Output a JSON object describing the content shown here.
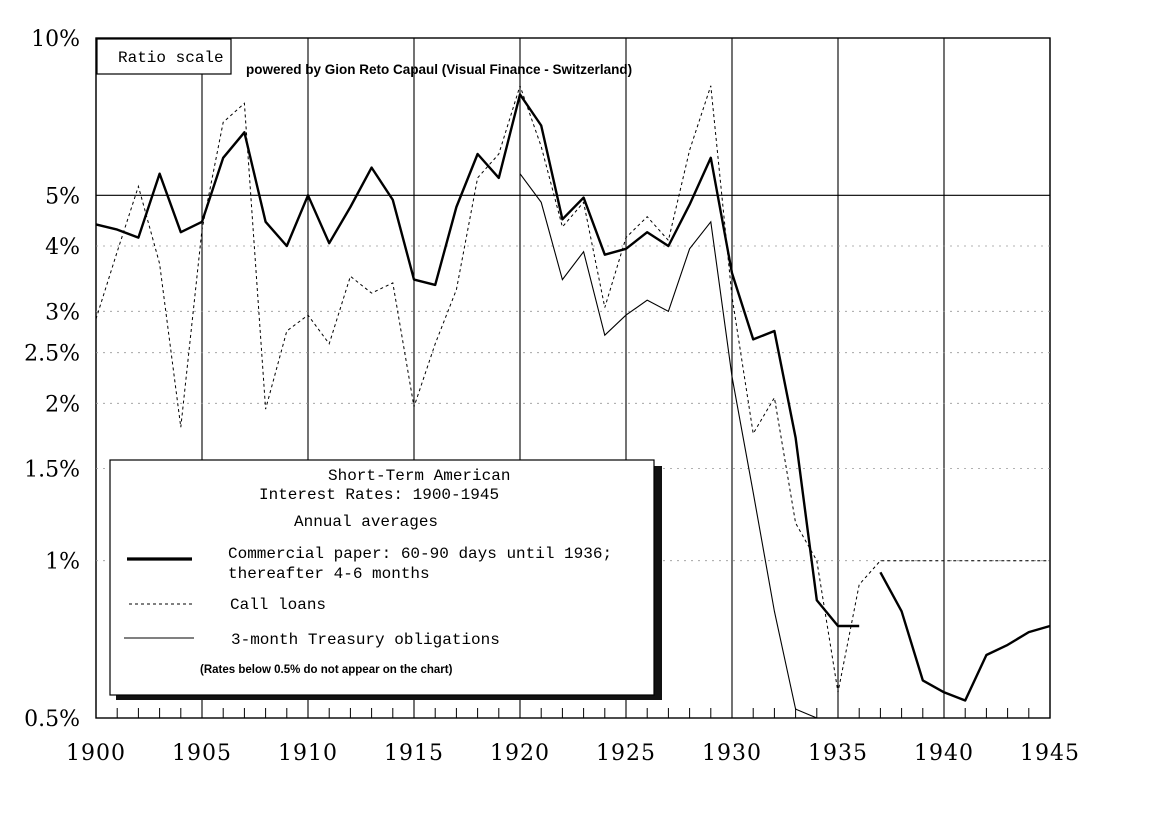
{
  "chart_data": {
    "type": "line",
    "scale": "log",
    "ratio_label": "Ratio scale",
    "credit": "powered by Gion Reto Capaul (Visual Finance - Switzerland)",
    "title_line1": "Short-Term American",
    "title_line2": "Interest Rates: 1900-1945",
    "subtitle": "Annual averages",
    "note": "(Rates below 0.5% do not appear on the chart)",
    "xlim": [
      1900,
      1945
    ],
    "ylim": [
      0.5,
      10
    ],
    "x_ticks": [
      {
        "value": 1900,
        "label": "1900"
      },
      {
        "value": 1905,
        "label": "1905"
      },
      {
        "value": 1910,
        "label": "1910"
      },
      {
        "value": 1915,
        "label": "1915"
      },
      {
        "value": 1920,
        "label": "1920"
      },
      {
        "value": 1925,
        "label": "1925"
      },
      {
        "value": 1930,
        "label": "1930"
      },
      {
        "value": 1935,
        "label": "1935"
      },
      {
        "value": 1940,
        "label": "1940"
      },
      {
        "value": 1945,
        "label": "1945"
      }
    ],
    "y_ticks": [
      {
        "value": 10,
        "label": "10%"
      },
      {
        "value": 5,
        "label": "5%"
      },
      {
        "value": 4,
        "label": "4%"
      },
      {
        "value": 3,
        "label": "3%"
      },
      {
        "value": 2.5,
        "label": "2.5%"
      },
      {
        "value": 2,
        "label": "2%"
      },
      {
        "value": 1.5,
        "label": "1.5%"
      },
      {
        "value": 1,
        "label": "1%"
      },
      {
        "value": 0.5,
        "label": "0.5%"
      }
    ],
    "series": [
      {
        "name": "commercial-paper",
        "label_line1": "Commercial paper: 60-90 days until 1936;",
        "label_line2": "thereafter 4-6 months",
        "style": "bold",
        "segments": [
          [
            [
              1900,
              4.4
            ],
            [
              1901,
              4.3
            ],
            [
              1902,
              4.15
            ],
            [
              1903,
              5.5
            ],
            [
              1904,
              4.25
            ],
            [
              1905,
              4.45
            ],
            [
              1906,
              5.9
            ],
            [
              1907,
              6.6
            ],
            [
              1908,
              4.45
            ],
            [
              1909,
              4.0
            ],
            [
              1910,
              5.0
            ],
            [
              1911,
              4.05
            ],
            [
              1912,
              4.75
            ],
            [
              1913,
              5.65
            ],
            [
              1914,
              4.9
            ],
            [
              1915,
              3.45
            ],
            [
              1916,
              3.37
            ],
            [
              1917,
              4.75
            ],
            [
              1918,
              6.0
            ],
            [
              1919,
              5.4
            ],
            [
              1920,
              7.8
            ],
            [
              1921,
              6.8
            ],
            [
              1922,
              4.5
            ],
            [
              1923,
              4.95
            ],
            [
              1924,
              3.85
            ],
            [
              1925,
              3.95
            ],
            [
              1926,
              4.25
            ],
            [
              1927,
              4.0
            ],
            [
              1928,
              4.8
            ],
            [
              1929,
              5.9
            ],
            [
              1930,
              3.55
            ],
            [
              1931,
              2.65
            ],
            [
              1932,
              2.75
            ],
            [
              1933,
              1.72
            ],
            [
              1934,
              0.84
            ],
            [
              1935,
              0.75
            ],
            [
              1936,
              0.75
            ]
          ],
          [
            [
              1937,
              0.95
            ],
            [
              1938,
              0.8
            ],
            [
              1939,
              0.59
            ],
            [
              1940,
              0.56
            ],
            [
              1941,
              0.54
            ],
            [
              1942,
              0.66
            ],
            [
              1943,
              0.69
            ],
            [
              1944,
              0.73
            ],
            [
              1945,
              0.75
            ]
          ]
        ]
      },
      {
        "name": "call-loans",
        "label_line1": "Call loans",
        "style": "dotted",
        "segments": [
          [
            [
              1900,
              2.9
            ],
            [
              1901,
              3.9
            ],
            [
              1902,
              5.2
            ],
            [
              1903,
              3.7
            ],
            [
              1904,
              1.8
            ],
            [
              1905,
              4.3
            ],
            [
              1906,
              6.9
            ],
            [
              1907,
              7.5
            ],
            [
              1908,
              1.95
            ],
            [
              1909,
              2.75
            ],
            [
              1910,
              2.95
            ],
            [
              1911,
              2.6
            ],
            [
              1912,
              3.5
            ],
            [
              1913,
              3.25
            ],
            [
              1914,
              3.4
            ],
            [
              1915,
              1.97
            ],
            [
              1916,
              2.6
            ],
            [
              1917,
              3.3
            ],
            [
              1918,
              5.4
            ],
            [
              1919,
              6.0
            ],
            [
              1920,
              8.1
            ],
            [
              1921,
              6.2
            ],
            [
              1922,
              4.35
            ],
            [
              1923,
              4.85
            ],
            [
              1924,
              3.05
            ],
            [
              1925,
              4.15
            ],
            [
              1926,
              4.55
            ],
            [
              1927,
              4.1
            ],
            [
              1928,
              6.1
            ],
            [
              1929,
              8.1
            ],
            [
              1930,
              3.2
            ],
            [
              1931,
              1.75
            ],
            [
              1932,
              2.05
            ],
            [
              1933,
              1.18
            ],
            [
              1934,
              1.0
            ],
            [
              1935,
              0.56
            ],
            [
              1936,
              0.9
            ],
            [
              1937,
              1.0
            ],
            [
              1945,
              1.0
            ]
          ]
        ]
      },
      {
        "name": "treasury-obligations",
        "label_line1": "3-month Treasury obligations",
        "style": "thin",
        "segments": [
          [
            [
              1920,
              5.5
            ],
            [
              1921,
              4.85
            ],
            [
              1922,
              3.45
            ],
            [
              1923,
              3.9
            ],
            [
              1924,
              2.7
            ],
            [
              1925,
              2.95
            ],
            [
              1926,
              3.15
            ],
            [
              1927,
              3.0
            ],
            [
              1928,
              3.95
            ],
            [
              1929,
              4.45
            ],
            [
              1930,
              2.25
            ],
            [
              1931,
              1.35
            ],
            [
              1932,
              0.8
            ],
            [
              1933,
              0.52
            ],
            [
              1934,
              0.5
            ]
          ]
        ]
      }
    ]
  }
}
